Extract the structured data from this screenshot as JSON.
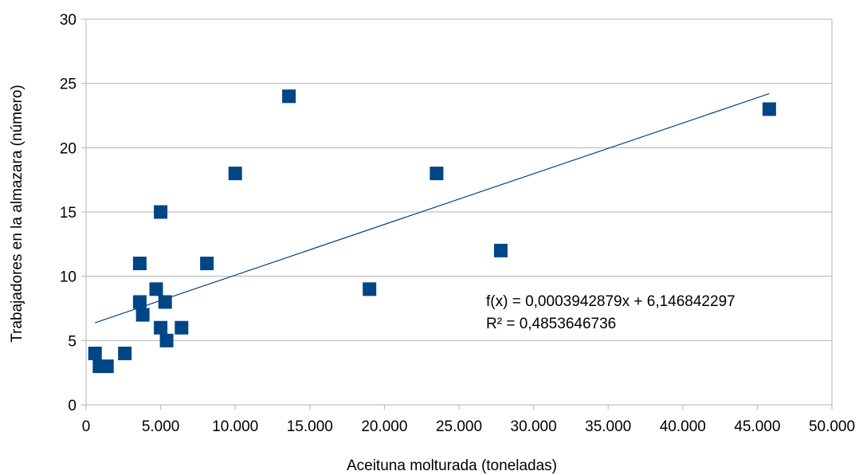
{
  "chart_data": {
    "type": "scatter",
    "title": "",
    "xlabel": "Aceituna molturada (toneladas)",
    "ylabel": "Trabajadores en la almazara (número)",
    "xlim": [
      0,
      50000
    ],
    "ylim": [
      0,
      30
    ],
    "xticks": [
      0,
      5000,
      10000,
      15000,
      20000,
      25000,
      30000,
      35000,
      40000,
      45000,
      50000
    ],
    "xtick_labels": [
      "0",
      "5.000",
      "10.000",
      "15.000",
      "20.000",
      "25.000",
      "30.000",
      "35.000",
      "40.000",
      "45.000",
      "50.000"
    ],
    "yticks": [
      0,
      5,
      10,
      15,
      20,
      25,
      30
    ],
    "ytick_labels": [
      "0",
      "5",
      "10",
      "15",
      "20",
      "25",
      "30"
    ],
    "grid": "horizontal",
    "legend": "none",
    "colors": {
      "marker": "#004586",
      "trendline": "#004586",
      "grid": "#b3b3b3",
      "axis": "#b3b3b3"
    },
    "series": [
      {
        "marker": "square",
        "points": [
          {
            "x": 600,
            "y": 4
          },
          {
            "x": 900,
            "y": 3
          },
          {
            "x": 1400,
            "y": 3
          },
          {
            "x": 2600,
            "y": 4
          },
          {
            "x": 3600,
            "y": 11
          },
          {
            "x": 3600,
            "y": 8
          },
          {
            "x": 3800,
            "y": 7
          },
          {
            "x": 4700,
            "y": 9
          },
          {
            "x": 5000,
            "y": 6
          },
          {
            "x": 5000,
            "y": 15
          },
          {
            "x": 5300,
            "y": 8
          },
          {
            "x": 5400,
            "y": 5
          },
          {
            "x": 6400,
            "y": 6
          },
          {
            "x": 8100,
            "y": 11
          },
          {
            "x": 10000,
            "y": 18
          },
          {
            "x": 13600,
            "y": 24
          },
          {
            "x": 19000,
            "y": 9
          },
          {
            "x": 23500,
            "y": 18
          },
          {
            "x": 27800,
            "y": 12
          },
          {
            "x": 45800,
            "y": 23
          }
        ]
      }
    ],
    "trendline": {
      "type": "linear",
      "slope": 0.0003942879,
      "intercept": 6.146842297,
      "x_range": [
        600,
        45800
      ],
      "equation_label": "f(x) = 0,0003942879x + 6,146842297",
      "r2_label": "R² = 0,4853646736"
    }
  }
}
